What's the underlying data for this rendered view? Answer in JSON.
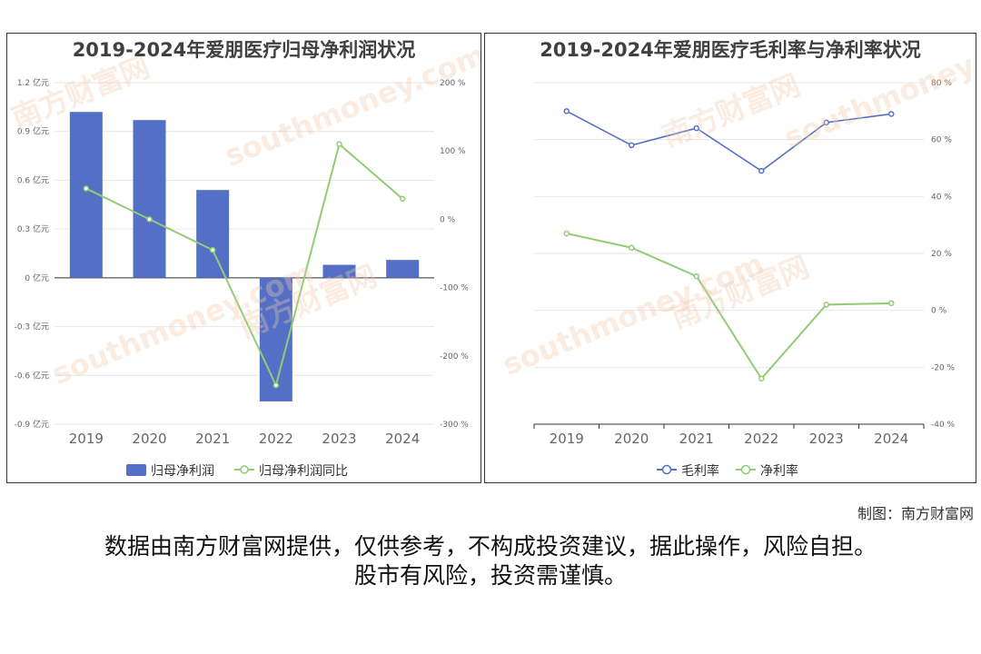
{
  "colors": {
    "bar": "#5470c6",
    "line_green": "#91cc75",
    "line_blue": "#5470c6",
    "grid": "#e6e6e6",
    "axis": "#333333"
  },
  "watermark": {
    "cn": "南方财富网",
    "en": "southmoney.com"
  },
  "chart_data": [
    {
      "type": "bar",
      "title": "2019-2024年爱朋医疗归母净利润状况",
      "categories": [
        "2019",
        "2020",
        "2021",
        "2022",
        "2023",
        "2024"
      ],
      "series": [
        {
          "name": "归母净利润",
          "type": "bar",
          "axis": "left",
          "values": [
            1.02,
            0.97,
            0.54,
            -0.76,
            0.08,
            0.11
          ]
        },
        {
          "name": "归母净利润同比",
          "type": "line",
          "axis": "right",
          "values": [
            45,
            0,
            -45,
            -243,
            110,
            30
          ]
        }
      ],
      "left_axis": {
        "ylim": [
          -0.9,
          1.2
        ],
        "ticks": [
          "1.2 亿元",
          "0.9 亿元",
          "0.6 亿元",
          "0.3 亿元",
          "0 亿元",
          "-0.3 亿元",
          "-0.6 亿元",
          "-0.9 亿元"
        ]
      },
      "right_axis": {
        "ylim": [
          -300,
          200
        ],
        "ticks": [
          "200 %",
          "100 %",
          "0 %",
          "-100 %",
          "-200 %",
          "-300 %"
        ]
      },
      "legend": "bottom"
    },
    {
      "type": "line",
      "title": "2019-2024年爱朋医疗毛利率与净利率状况",
      "categories": [
        "2019",
        "2020",
        "2021",
        "2022",
        "2023",
        "2024"
      ],
      "series": [
        {
          "name": "毛利率",
          "values": [
            70,
            58,
            64,
            49,
            66,
            69
          ]
        },
        {
          "name": "净利率",
          "values": [
            27,
            22,
            12,
            -24,
            2,
            2.5
          ]
        }
      ],
      "right_axis": {
        "ylim": [
          -40,
          80
        ],
        "ticks": [
          "80 %",
          "60 %",
          "40 %",
          "20 %",
          "0 %",
          "-20 %",
          "-40 %"
        ]
      },
      "legend": "bottom"
    }
  ],
  "footer": {
    "credit": "制图：南方财富网",
    "disclaimer_line1": "数据由南方财富网提供，仅供参考，不构成投资建议，据此操作，风险自担。",
    "disclaimer_line2": "股市有风险，投资需谨慎。"
  }
}
